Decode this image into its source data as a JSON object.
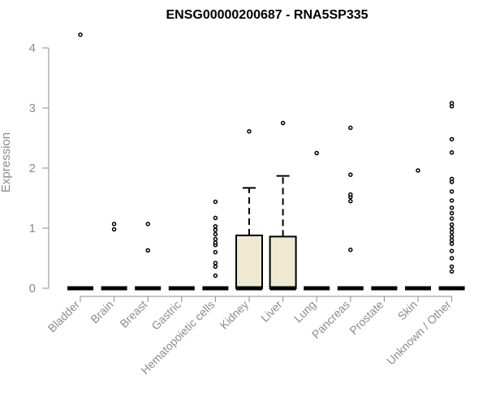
{
  "chart_data": {
    "type": "boxplot",
    "title": "ENSG00000200687 - RNA5SP335",
    "xlabel": "",
    "ylabel": "Expression",
    "ylim": [
      0,
      4.2
    ],
    "yticks": [
      0,
      1,
      2,
      3,
      4
    ],
    "box_fill": "#efe9d1",
    "categories": [
      "Bladder",
      "Brain",
      "Breast",
      "Gastric",
      "Hematopoietic cells",
      "Kidney",
      "Liver",
      "Lung",
      "Pancreas",
      "Prostate",
      "Skin",
      "Unknown / Other"
    ],
    "series": [
      {
        "name": "Bladder",
        "q1": 0,
        "median": 0,
        "q3": 0,
        "whisker_low": 0,
        "whisker_high": 0,
        "outliers": [
          4.22
        ]
      },
      {
        "name": "Brain",
        "q1": 0,
        "median": 0,
        "q3": 0,
        "whisker_low": 0,
        "whisker_high": 0,
        "outliers": [
          0.98,
          1.07
        ]
      },
      {
        "name": "Breast",
        "q1": 0,
        "median": 0,
        "q3": 0,
        "whisker_low": 0,
        "whisker_high": 0,
        "outliers": [
          0.63,
          1.07
        ]
      },
      {
        "name": "Gastric",
        "q1": 0,
        "median": 0,
        "q3": 0,
        "whisker_low": 0,
        "whisker_high": 0,
        "outliers": []
      },
      {
        "name": "Hematopoietic cells",
        "q1": 0,
        "median": 0,
        "q3": 0,
        "whisker_low": 0,
        "whisker_high": 0,
        "outliers": [
          0.21,
          0.36,
          0.42,
          0.6,
          0.72,
          0.76,
          0.82,
          0.9,
          0.97,
          1.03,
          1.17,
          1.44
        ]
      },
      {
        "name": "Kidney",
        "q1": 0,
        "median": 0,
        "q3": 0.88,
        "whisker_low": 0,
        "whisker_high": 1.67,
        "outliers": [
          2.61
        ]
      },
      {
        "name": "Liver",
        "q1": 0,
        "median": 0,
        "q3": 0.86,
        "whisker_low": 0,
        "whisker_high": 1.87,
        "outliers": [
          2.75
        ]
      },
      {
        "name": "Lung",
        "q1": 0,
        "median": 0,
        "q3": 0,
        "whisker_low": 0,
        "whisker_high": 0,
        "outliers": [
          2.25
        ]
      },
      {
        "name": "Pancreas",
        "q1": 0,
        "median": 0,
        "q3": 0,
        "whisker_low": 0,
        "whisker_high": 0,
        "outliers": [
          0.64,
          1.45,
          1.52,
          1.56,
          1.89,
          2.67
        ]
      },
      {
        "name": "Prostate",
        "q1": 0,
        "median": 0,
        "q3": 0,
        "whisker_low": 0,
        "whisker_high": 0,
        "outliers": []
      },
      {
        "name": "Skin",
        "q1": 0,
        "median": 0,
        "q3": 0,
        "whisker_low": 0,
        "whisker_high": 0,
        "outliers": [
          1.96
        ]
      },
      {
        "name": "Unknown / Other",
        "q1": 0,
        "median": 0,
        "q3": 0,
        "whisker_low": 0,
        "whisker_high": 0,
        "outliers": [
          0.28,
          0.36,
          0.5,
          0.62,
          0.74,
          0.8,
          0.86,
          0.93,
          0.99,
          1.06,
          1.16,
          1.25,
          1.34,
          1.46,
          1.61,
          1.77,
          1.82,
          2.26,
          2.48,
          3.03,
          3.08
        ]
      }
    ]
  }
}
